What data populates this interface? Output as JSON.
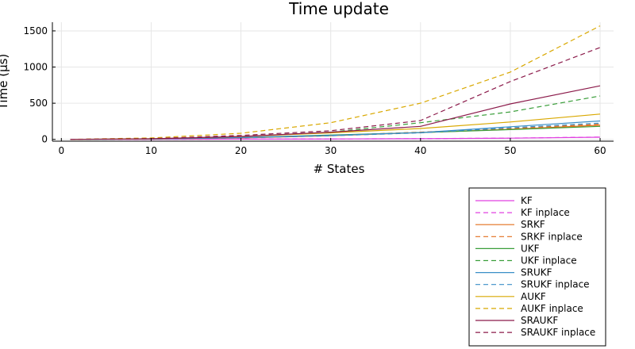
{
  "chart_data": {
    "type": "line",
    "title": "Time update",
    "xlabel": "# States",
    "ylabel": "Time (μs)",
    "xlim": [
      -1,
      61.5
    ],
    "ylim": [
      -25,
      1620
    ],
    "xticks": [
      0,
      10,
      20,
      30,
      40,
      50,
      60
    ],
    "xtick_labels": [
      "0",
      "10",
      "20",
      "30",
      "40",
      "50",
      "60"
    ],
    "yticks": [
      0,
      500,
      1000,
      1500
    ],
    "ytick_labels": [
      "0",
      "500",
      "1000",
      "1500"
    ],
    "grid": true,
    "legend_position": "bottom-right, outside",
    "x": [
      1,
      10,
      20,
      30,
      40,
      50,
      60
    ],
    "series": [
      {
        "name": "KF",
        "color": "#e040e0",
        "style": "solid",
        "values": [
          0,
          1,
          3,
          6,
          10,
          17,
          30
        ]
      },
      {
        "name": "KF inplace",
        "color": "#e040e0",
        "style": "dashed",
        "values": [
          0,
          1,
          3,
          6,
          10,
          18,
          32
        ]
      },
      {
        "name": "SRKF",
        "color": "#e26f1c",
        "style": "solid",
        "values": [
          0,
          5,
          20,
          50,
          95,
          140,
          195
        ]
      },
      {
        "name": "SRKF inplace",
        "color": "#e26f1c",
        "style": "dashed",
        "values": [
          0,
          5,
          22,
          55,
          100,
          150,
          210
        ]
      },
      {
        "name": "UKF",
        "color": "#3a9e3a",
        "style": "solid",
        "values": [
          0,
          6,
          25,
          60,
          95,
          135,
          180
        ]
      },
      {
        "name": "UKF inplace",
        "color": "#3a9e3a",
        "style": "dashed",
        "values": [
          0,
          10,
          40,
          100,
          230,
          380,
          600
        ]
      },
      {
        "name": "SRUKF",
        "color": "#3a8fc7",
        "style": "solid",
        "values": [
          0,
          5,
          25,
          55,
          95,
          175,
          255
        ]
      },
      {
        "name": "SRUKF inplace",
        "color": "#3a8fc7",
        "style": "dashed",
        "values": [
          0,
          5,
          22,
          50,
          90,
          160,
          225
        ]
      },
      {
        "name": "AUKF",
        "color": "#d9a800",
        "style": "solid",
        "values": [
          0,
          8,
          40,
          90,
          150,
          240,
          350
        ]
      },
      {
        "name": "AUKF inplace",
        "color": "#d9a800",
        "style": "dashed",
        "values": [
          0,
          20,
          85,
          230,
          500,
          930,
          1570
        ]
      },
      {
        "name": "SRAUKF",
        "color": "#8b1a4a",
        "style": "solid",
        "values": [
          0,
          8,
          40,
          100,
          180,
          490,
          740
        ]
      },
      {
        "name": "SRAUKF inplace",
        "color": "#8b1a4a",
        "style": "dashed",
        "values": [
          0,
          10,
          55,
          120,
          260,
          800,
          1270
        ]
      }
    ]
  }
}
